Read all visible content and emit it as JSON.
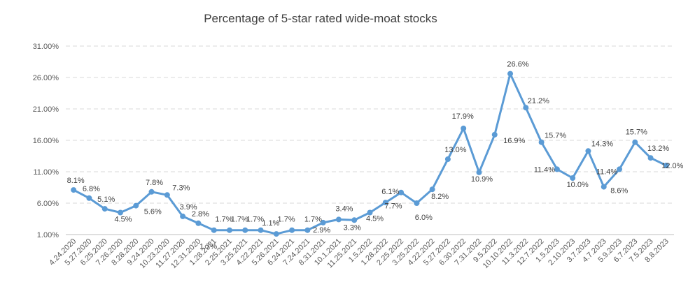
{
  "chart_data": {
    "type": "line",
    "title": "Percentage of 5-star rated wide-moat stocks",
    "xlabel": "",
    "ylabel": "",
    "ylim": [
      1,
      31
    ],
    "yticks": [
      "1.00%",
      "6.00%",
      "11.00%",
      "16.00%",
      "21.00%",
      "26.00%",
      "31.00%"
    ],
    "ytick_values": [
      1,
      6,
      11,
      16,
      21,
      26,
      31
    ],
    "grid": true,
    "legend": "none",
    "series_color": "#5b9bd5",
    "categories": [
      "4.24.2020",
      "5.27.2020",
      "6.25.2020",
      "7.26.2020",
      "8.28.2020",
      "9.24.2020",
      "10.23.2020",
      "11.27.2020",
      "12.31.2020",
      "1.28.2021",
      "2.25.2021",
      "3.25.2021",
      "4.22.2021",
      "5.26.2021",
      "6.24.2021",
      "7.24.2021",
      "8.31.2021",
      "10.1.2021",
      "11.25.2021",
      "1.5.2022",
      "1.28.2022",
      "2.25.2022",
      "3.25.2022",
      "4.22.2022",
      "5.27.2022",
      "6.30.2022",
      "7.31.2022",
      "9.5.2022",
      "10.10.2022",
      "11.3.2022",
      "12.7.2022",
      "1.5.2023",
      "2.10.2023",
      "3.7.2023",
      "4.7.2023",
      "5.9.2023",
      "6.7.2023",
      "7.5.2023",
      "8.8.2023"
    ],
    "values": [
      8.1,
      6.8,
      5.1,
      4.5,
      5.6,
      7.8,
      7.3,
      3.9,
      2.8,
      1.7,
      1.7,
      1.7,
      1.7,
      1.1,
      1.7,
      1.7,
      2.9,
      3.4,
      3.3,
      4.5,
      6.1,
      7.7,
      6.0,
      8.2,
      13.0,
      17.9,
      10.9,
      16.9,
      26.6,
      21.2,
      15.7,
      11.4,
      10.0,
      14.3,
      8.6,
      11.4,
      15.7,
      13.2,
      12.0
    ],
    "data_labels": [
      "8.1%",
      "6.8%",
      "5.1%",
      "4.5%",
      "5.6%",
      "7.8%",
      "7.3%",
      "3.9%",
      "2.8%",
      "1.7%",
      "1.7%",
      "1.7%",
      "1.1%",
      "1.7%",
      "1.7%",
      "2.9%",
      "3.4%",
      "3.3%",
      "4.5%",
      "6.1%",
      "7.7%",
      "6.0%",
      "8.2%",
      "13.0%",
      "17.9%",
      "10.9%",
      "16.9%",
      "26.6%",
      "21.2%",
      "15.7%",
      "11.4%",
      "10.0%",
      "14.3%",
      "8.6%",
      "11.4%",
      "15.7%",
      "13.2%",
      "12.0%",
      "1.7%"
    ],
    "data_label_index": [
      0,
      1,
      2,
      3,
      4,
      5,
      6,
      7,
      8,
      9,
      10,
      11,
      13,
      14,
      15,
      16,
      17,
      18,
      19,
      20,
      21,
      22,
      23,
      24,
      25,
      26,
      27,
      28,
      29,
      30,
      31,
      32,
      33,
      34,
      35,
      36,
      37,
      38,
      12
    ]
  }
}
